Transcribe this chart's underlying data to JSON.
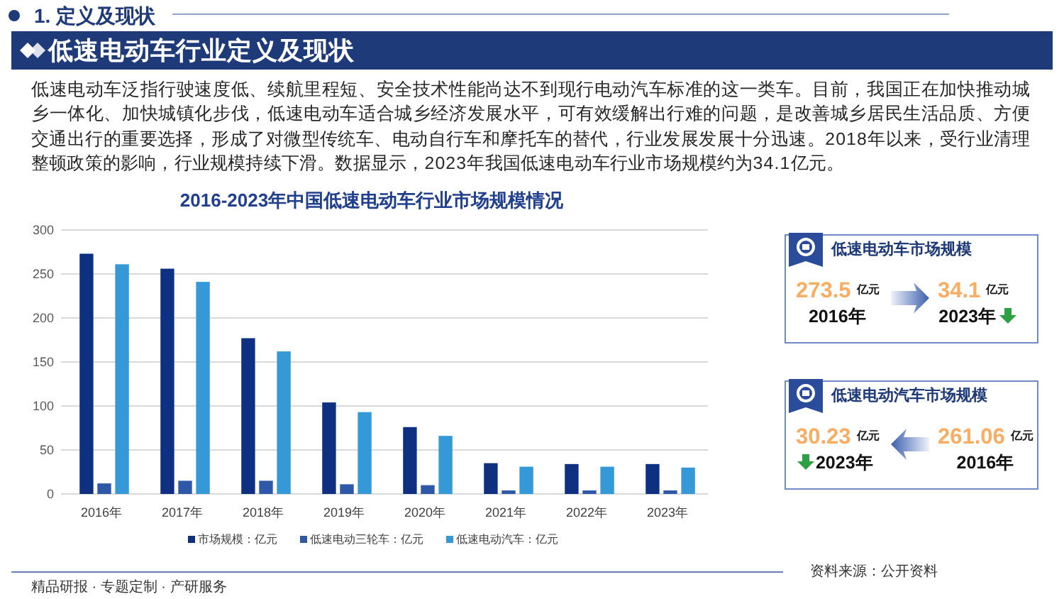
{
  "chart_data": [
    {
      "type": "other",
      "title": "低速电动车行业定义及现状",
      "annotations": [
        "1. 定义及现状",
        "低速电动车泛指行驶速度低、续航里程短、安全技术性能尚达不到现行电动汽车标准的这一类车。目前，我国正在加快推动城乡一体化、加快城镇化步伐，低速电动车适合城乡经济发展水平，可有效缓解出行难的问题，是改善城乡居民生活品质、方便交通出行的重要选择，形成了对微型传统车、电动自行车和摩托车的替代，行业发展发展十分迅速。2018年以来，受行业清理整顿政策的影响，行业规模持续下滑。数据显示，2023年我国低速电动车行业市场规模约为34.1亿元。",
        "精品研报 · 专题定制 · 产研服务"
      ]
    },
    {
      "type": "bar",
      "title": "2016-2023年中国低速电动车行业市场规模情况",
      "categories": [
        "2016年",
        "2017年",
        "2018年",
        "2019年",
        "2020年",
        "2021年",
        "2022年",
        "2023年"
      ],
      "series": [
        {
          "name": "市场规模：亿元",
          "color": "#0f3080",
          "values": [
            273,
            256,
            177,
            104,
            76,
            35,
            34,
            34
          ]
        },
        {
          "name": "低速电动三轮车：亿元",
          "color": "#2f58a8",
          "values": [
            12,
            15,
            15,
            11,
            10,
            4,
            4,
            4
          ]
        },
        {
          "name": "低速电动汽车：亿元",
          "color": "#3499d6",
          "values": [
            261,
            241,
            162,
            93,
            66,
            31,
            31,
            30
          ]
        }
      ],
      "ylim": [
        0,
        300
      ],
      "yticks": [
        0,
        50,
        100,
        150,
        200,
        250,
        300
      ],
      "grid": "y",
      "legend": "bottom",
      "annotations": [
        "资料来源：公开资料"
      ]
    },
    {
      "type": "other",
      "title": "低速电动车市场规模",
      "categories": [
        "2016年",
        "2023年"
      ],
      "values": [
        273.5,
        34.1
      ],
      "data_labels": true,
      "ylabel": "亿元"
    },
    {
      "type": "other",
      "title": "低速电动汽车市场规模",
      "categories": [
        "2023年",
        "2016年"
      ],
      "values": [
        30.23,
        261.06
      ],
      "data_labels": true,
      "ylabel": "亿元"
    }
  ]
}
